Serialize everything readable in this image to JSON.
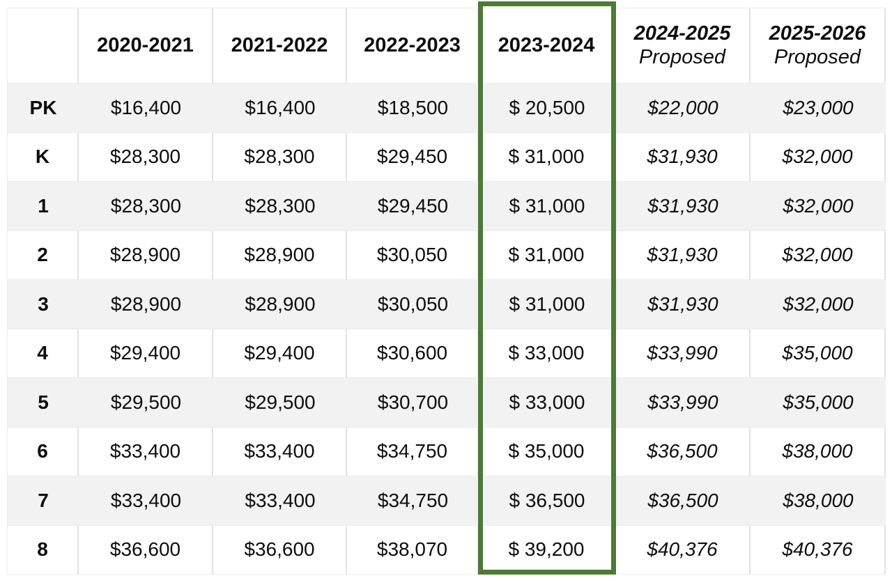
{
  "table": {
    "corner_label": "",
    "columns": [
      {
        "label": "2020-2021",
        "sublabel": "",
        "italic": false,
        "highlighted": false
      },
      {
        "label": "2021-2022",
        "sublabel": "",
        "italic": false,
        "highlighted": false
      },
      {
        "label": "2022-2023",
        "sublabel": "",
        "italic": false,
        "highlighted": false
      },
      {
        "label": "2023-2024",
        "sublabel": "",
        "italic": false,
        "highlighted": true
      },
      {
        "label": "2024-2025",
        "sublabel": "Proposed",
        "italic": true,
        "highlighted": false
      },
      {
        "label": "2025-2026",
        "sublabel": "Proposed",
        "italic": true,
        "highlighted": false
      }
    ],
    "rows": [
      {
        "grade": "PK",
        "values": [
          "$16,400",
          "$16,400",
          "$18,500",
          "$ 20,500",
          "$22,000",
          "$23,000"
        ]
      },
      {
        "grade": "K",
        "values": [
          "$28,300",
          "$28,300",
          "$29,450",
          "$ 31,000",
          "$31,930",
          "$32,000"
        ]
      },
      {
        "grade": "1",
        "values": [
          "$28,300",
          "$28,300",
          "$29,450",
          "$ 31,000",
          "$31,930",
          "$32,000"
        ]
      },
      {
        "grade": "2",
        "values": [
          "$28,900",
          "$28,900",
          "$30,050",
          "$ 31,000",
          "$31,930",
          "$32,000"
        ]
      },
      {
        "grade": "3",
        "values": [
          "$28,900",
          "$28,900",
          "$30,050",
          "$ 31,000",
          "$31,930",
          "$32,000"
        ]
      },
      {
        "grade": "4",
        "values": [
          "$29,400",
          "$29,400",
          "$30,600",
          "$ 33,000",
          "$33,990",
          "$35,000"
        ]
      },
      {
        "grade": "5",
        "values": [
          "$29,500",
          "$29,500",
          "$30,700",
          "$ 33,000",
          "$33,990",
          "$35,000"
        ]
      },
      {
        "grade": "6",
        "values": [
          "$33,400",
          "$33,400",
          "$34,750",
          "$ 35,000",
          "$36,500",
          "$38,000"
        ]
      },
      {
        "grade": "7",
        "values": [
          "$33,400",
          "$33,400",
          "$34,750",
          "$ 36,500",
          "$36,500",
          "$38,000"
        ]
      },
      {
        "grade": "8",
        "values": [
          "$36,600",
          "$36,600",
          "$38,070",
          "$ 39,200",
          "$40,376",
          "$40,376"
        ]
      }
    ]
  },
  "highlight": {
    "column_label": "2023-2024",
    "border_color": "#4d7a34"
  },
  "colors": {
    "background": "#ffffff",
    "stripe_row": "#f2f2f2",
    "plain_row": "#ffffff",
    "divider": "#e2e2e2",
    "grid_line": "#ececec",
    "text": "#0d0d0d",
    "highlight_green": "#4d7a34"
  },
  "chart_data": {
    "type": "table",
    "title": "",
    "row_labels": [
      "PK",
      "K",
      "1",
      "2",
      "3",
      "4",
      "5",
      "6",
      "7",
      "8"
    ],
    "columns": [
      "2020-2021",
      "2021-2022",
      "2022-2023",
      "2023-2024",
      "2024-2025 Proposed",
      "2025-2026 Proposed"
    ],
    "values_usd": [
      [
        16400,
        16400,
        18500,
        20500,
        22000,
        23000
      ],
      [
        28300,
        28300,
        29450,
        31000,
        31930,
        32000
      ],
      [
        28300,
        28300,
        29450,
        31000,
        31930,
        32000
      ],
      [
        28900,
        28900,
        30050,
        31000,
        31930,
        32000
      ],
      [
        28900,
        28900,
        30050,
        31000,
        31930,
        32000
      ],
      [
        29400,
        29400,
        30600,
        33000,
        33990,
        35000
      ],
      [
        29500,
        29500,
        30700,
        33000,
        33990,
        35000
      ],
      [
        33400,
        33400,
        34750,
        35000,
        36500,
        38000
      ],
      [
        33400,
        33400,
        34750,
        36500,
        36500,
        38000
      ],
      [
        36600,
        36600,
        38070,
        39200,
        40376,
        40376
      ]
    ],
    "highlighted_column": "2023-2024",
    "proposed_columns": [
      "2024-2025 Proposed",
      "2025-2026 Proposed"
    ],
    "layout": {
      "stripes": "alternating starting gray at PK",
      "highlight": "green box around 2023-2024 column"
    }
  }
}
